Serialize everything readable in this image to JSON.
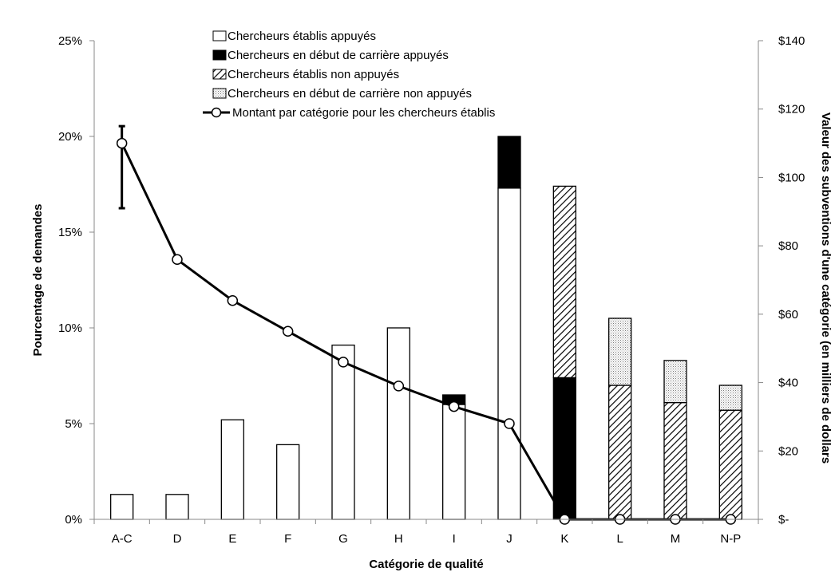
{
  "chart_data": {
    "type": "bar",
    "xlabel": "Catégorie de qualité",
    "ylabel": "Pourcentage de demandes",
    "y2label": "Valeur des subventions d'une catégorie (en milliers de dollars",
    "categories": [
      "A-C",
      "D",
      "E",
      "F",
      "G",
      "H",
      "I",
      "J",
      "K",
      "L",
      "M",
      "N-P"
    ],
    "ylim": [
      0,
      25
    ],
    "y_ticks": [
      0,
      5,
      10,
      15,
      20,
      25
    ],
    "y_tick_labels": [
      "0%",
      "5%",
      "10%",
      "15%",
      "20%",
      "25%"
    ],
    "y2lim": [
      0,
      140
    ],
    "y2_ticks": [
      0,
      20,
      40,
      60,
      80,
      100,
      120,
      140
    ],
    "y2_tick_labels": [
      "$-",
      "$20",
      "$40",
      "$60",
      "$80",
      "$100",
      "$120",
      "$140"
    ],
    "stacked": true,
    "grid": false,
    "legend_position": "top",
    "series": [
      {
        "name": "Chercheurs établis appuyés",
        "pattern": "white",
        "values": [
          1.3,
          1.3,
          5.2,
          3.9,
          9.1,
          10.0,
          6.0,
          17.3,
          0,
          0,
          0,
          0
        ]
      },
      {
        "name": "Chercheurs en début de carrière appuyés",
        "pattern": "black",
        "values": [
          0,
          0,
          0,
          0,
          0,
          0,
          0.5,
          2.7,
          7.4,
          0,
          0,
          0
        ]
      },
      {
        "name": "Chercheurs établis non appuyés",
        "pattern": "hatch",
        "values": [
          0,
          0,
          0,
          0,
          0,
          0,
          0,
          0,
          10.0,
          7.0,
          6.1,
          5.7
        ]
      },
      {
        "name": "Chercheurs en début de carrière non appuyés",
        "pattern": "dots",
        "values": [
          0,
          0,
          0,
          0,
          0,
          0,
          0,
          0,
          0,
          3.5,
          2.2,
          1.3
        ]
      }
    ],
    "line_series": {
      "name": "Montant par catégorie pour les chercheurs établis",
      "axis": "right",
      "values": [
        110,
        76,
        64,
        55,
        46,
        39,
        33,
        28,
        0,
        0,
        0,
        0
      ],
      "error_bar": {
        "category": "A-C",
        "low": 91,
        "high": 115
      }
    }
  }
}
